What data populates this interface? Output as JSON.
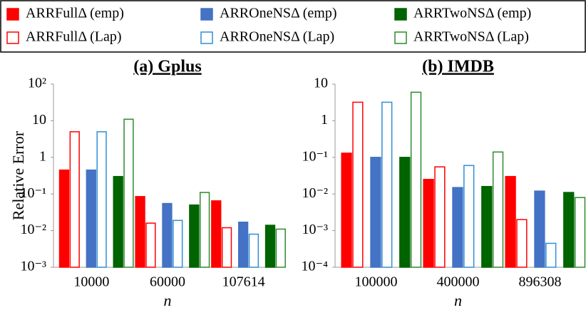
{
  "chart_data": [
    {
      "type": "bar",
      "title": "(a) Gplus",
      "y_label": "Relative Error",
      "x_label": "n",
      "log_y": true,
      "categories": [
        "10000",
        "60000",
        "107614"
      ],
      "ylim": [
        0.001,
        100
      ],
      "yticks": [
        {
          "value": 100,
          "label": "10²"
        },
        10,
        1,
        {
          "value": 0.1,
          "label": "10⁻¹"
        },
        {
          "value": 0.01,
          "label": "10⁻²"
        },
        {
          "value": 0.001,
          "label": "10⁻³"
        }
      ],
      "series": [
        {
          "name": "ARRFullΔ (emp)",
          "color": "#ff0000",
          "filled": true,
          "values": [
            0.45,
            0.085,
            0.065
          ]
        },
        {
          "name": "ARRFullΔ (Lap)",
          "color": "#ff0000",
          "filled": false,
          "values": [
            5,
            0.016,
            0.012
          ]
        },
        {
          "name": "ARROneNSΔ (emp)",
          "color": "#4472c4",
          "filled": true,
          "values": [
            0.45,
            0.055,
            0.017
          ]
        },
        {
          "name": "ARROneNSΔ (Lap)",
          "color": "#2e8fd6",
          "filled": false,
          "values": [
            5,
            0.019,
            0.008
          ]
        },
        {
          "name": "ARRTwoNSΔ (emp)",
          "color": "#006400",
          "filled": true,
          "values": [
            0.3,
            0.05,
            0.014
          ]
        },
        {
          "name": "ARRTwoNSΔ (Lap)",
          "color": "#2e8b2e",
          "filled": false,
          "values": [
            11,
            0.11,
            0.011
          ]
        }
      ]
    },
    {
      "type": "bar",
      "title": "(b) IMDB",
      "x_label": "n",
      "log_y": true,
      "categories": [
        "100000",
        "400000",
        "896308"
      ],
      "ylim": [
        0.0001,
        10
      ],
      "yticks": [
        10,
        1,
        {
          "value": 0.1,
          "label": "10⁻¹"
        },
        {
          "value": 0.01,
          "label": "10⁻²"
        },
        {
          "value": 0.001,
          "label": "10⁻³"
        },
        {
          "value": 0.0001,
          "label": "10⁻⁴"
        }
      ],
      "series": [
        {
          "name": "ARRFullΔ (emp)",
          "color": "#ff0000",
          "filled": true,
          "values": [
            0.13,
            0.025,
            0.03
          ]
        },
        {
          "name": "ARRFullΔ (Lap)",
          "color": "#ff0000",
          "filled": false,
          "values": [
            3.2,
            0.055,
            0.002
          ]
        },
        {
          "name": "ARROneNSΔ (emp)",
          "color": "#4472c4",
          "filled": true,
          "values": [
            0.1,
            0.015,
            0.012
          ]
        },
        {
          "name": "ARROneNSΔ (Lap)",
          "color": "#2e8fd6",
          "filled": false,
          "values": [
            3.2,
            0.06,
            0.00045
          ]
        },
        {
          "name": "ARRTwoNSΔ (emp)",
          "color": "#006400",
          "filled": true,
          "values": [
            0.1,
            0.016,
            0.011
          ]
        },
        {
          "name": "ARRTwoNSΔ (Lap)",
          "color": "#2e8b2e",
          "filled": false,
          "values": [
            6,
            0.14,
            0.008
          ]
        }
      ]
    }
  ]
}
